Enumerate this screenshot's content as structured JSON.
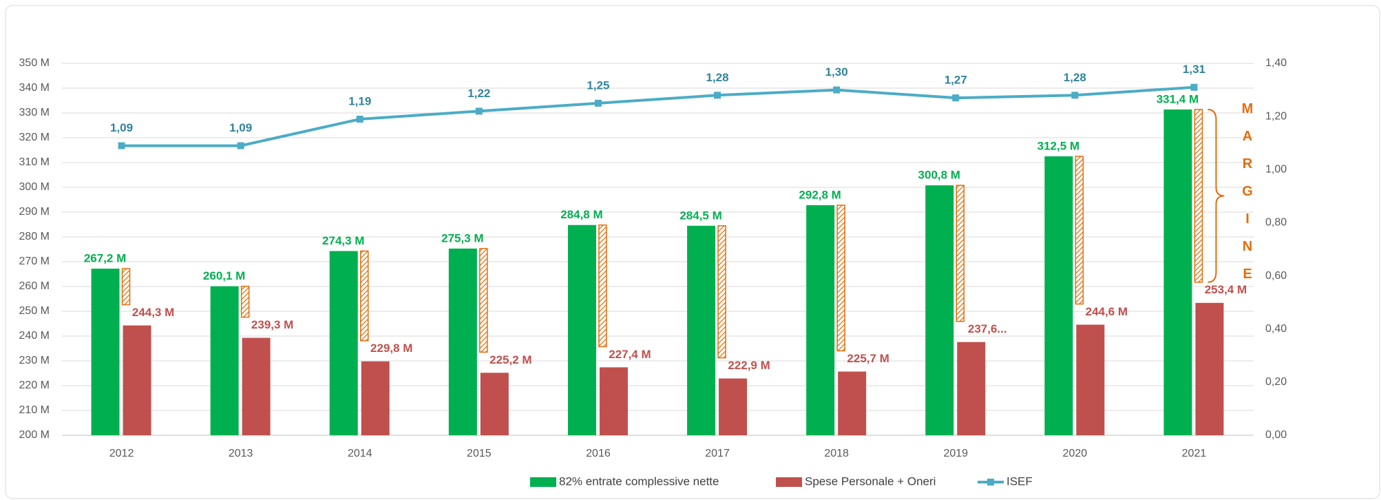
{
  "chart_data": {
    "type": "bar",
    "categories": [
      "2012",
      "2013",
      "2014",
      "2015",
      "2016",
      "2017",
      "2018",
      "2019",
      "2020",
      "2021"
    ],
    "series": [
      {
        "name": "82% entrate complessive nette",
        "color": "#00b050",
        "type": "bar",
        "values": [
          267.2,
          260.1,
          274.3,
          275.3,
          284.8,
          284.5,
          292.8,
          300.8,
          312.5,
          331.4
        ],
        "value_labels": [
          "267,2 M",
          "260,1 M",
          "274,3 M",
          "275,3 M",
          "284,8 M",
          "284,5 M",
          "292,8 M",
          "300,8 M",
          "312,5 M",
          "331,4 M"
        ]
      },
      {
        "name": "Spese Personale + Oneri",
        "color": "#c0504d",
        "type": "bar",
        "values": [
          244.3,
          239.3,
          229.8,
          225.2,
          227.4,
          222.9,
          225.7,
          237.6,
          244.6,
          253.4
        ],
        "value_labels": [
          "244,3 M",
          "239,3 M",
          "229,8 M",
          "225,2 M",
          "227,4 M",
          "222,9 M",
          "225,7 M",
          "237,6...",
          "244,6 M",
          "253,4 M"
        ]
      },
      {
        "name": "ISEF",
        "color": "#4bacc6",
        "type": "line",
        "axis": "y2",
        "values": [
          1.09,
          1.09,
          1.19,
          1.22,
          1.25,
          1.28,
          1.3,
          1.27,
          1.28,
          1.31
        ],
        "value_labels": [
          "1,09",
          "1,09",
          "1,19",
          "1,22",
          "1,25",
          "1,28",
          "1,30",
          "1,27",
          "1,28",
          "1,31"
        ]
      }
    ],
    "ylim": [
      200,
      350
    ],
    "yticks": [
      {
        "value": 200,
        "label": "200 M"
      },
      {
        "value": 210,
        "label": "210 M"
      },
      {
        "value": 220,
        "label": "220 M"
      },
      {
        "value": 230,
        "label": "230 M"
      },
      {
        "value": 240,
        "label": "240 M"
      },
      {
        "value": 250,
        "label": "250 M"
      },
      {
        "value": 260,
        "label": "260 M"
      },
      {
        "value": 270,
        "label": "270 M"
      },
      {
        "value": 280,
        "label": "280 M"
      },
      {
        "value": 290,
        "label": "290 M"
      },
      {
        "value": 300,
        "label": "300 M"
      },
      {
        "value": 310,
        "label": "310 M"
      },
      {
        "value": 320,
        "label": "320 M"
      },
      {
        "value": 330,
        "label": "330 M"
      },
      {
        "value": 340,
        "label": "340 M"
      },
      {
        "value": 350,
        "label": "350 M"
      }
    ],
    "y2lim": [
      0,
      1.4
    ],
    "y2ticks": [
      {
        "value": 0,
        "label": "0,00"
      },
      {
        "value": 0.2,
        "label": "0,20"
      },
      {
        "value": 0.4,
        "label": "0,40"
      },
      {
        "value": 0.6,
        "label": "0,60"
      },
      {
        "value": 0.8,
        "label": "0,80"
      },
      {
        "value": 1.0,
        "label": "1,00"
      },
      {
        "value": 1.2,
        "label": "1,20"
      },
      {
        "value": 1.4,
        "label": "1,40"
      }
    ],
    "grid": true,
    "annotation": "MARGINE",
    "annotation_color": "#e46c0a",
    "legend": "bottom"
  }
}
